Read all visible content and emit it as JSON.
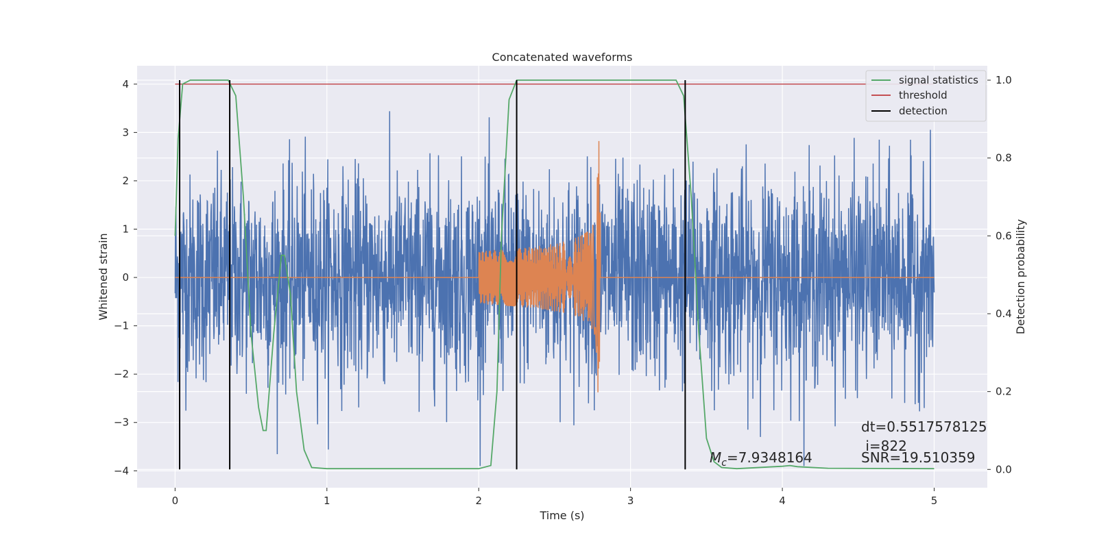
{
  "chart_data": {
    "type": "line",
    "title": "Concatenated waveforms",
    "xlabel": "Time (s)",
    "ylabel": "Whitened strain",
    "y2label": "Detection probability",
    "xlim": [
      -0.25,
      5.35
    ],
    "ylim": [
      -4.35,
      4.38
    ],
    "y2lim": [
      -0.047,
      1.037
    ],
    "xticks": [
      0,
      1,
      2,
      3,
      4,
      5
    ],
    "yticks": [
      -4,
      -3,
      -2,
      -1,
      0,
      1,
      2,
      3,
      4
    ],
    "y2ticks": [
      0.0,
      0.2,
      0.4,
      0.6,
      0.8,
      1.0
    ],
    "xtick_labels": [
      "0",
      "1",
      "2",
      "3",
      "4",
      "5"
    ],
    "ytick_labels": [
      "−4",
      "−3",
      "−2",
      "−1",
      "0",
      "1",
      "2",
      "3",
      "4"
    ],
    "y2tick_labels": [
      "0.0",
      "0.2",
      "0.4",
      "0.6",
      "0.8",
      "1.0"
    ],
    "grid": true,
    "legend_position": "top-right",
    "colors": {
      "strain": "#4c72b0",
      "waveform": "#dd8452",
      "signal": "#55a868",
      "threshold": "#c44e52",
      "detection": "#000000",
      "background": "#eaeaf2",
      "grid": "#ffffff"
    },
    "series": [
      {
        "key": "strain",
        "description_axis": "left",
        "x_range": [
          0,
          5
        ],
        "approx_amplitude_range": [
          -3.9,
          3.8
        ]
      },
      {
        "key": "waveform",
        "description_axis": "left",
        "x_range": [
          2.0,
          2.8
        ],
        "approx_peak_amplitude": 3.0
      },
      {
        "name": "signal statistics",
        "axis": "right",
        "x": [
          0.0,
          0.02,
          0.05,
          0.1,
          0.2,
          0.35,
          0.4,
          0.45,
          0.5,
          0.55,
          0.58,
          0.6,
          0.65,
          0.7,
          0.72,
          0.76,
          0.8,
          0.85,
          0.9,
          1.0,
          2.0,
          2.08,
          2.12,
          2.15,
          2.2,
          2.25,
          2.3,
          3.3,
          3.35,
          3.4,
          3.45,
          3.5,
          3.55,
          3.6,
          3.7,
          4.0,
          4.05,
          4.1,
          4.3,
          5.0
        ],
        "values": [
          0.6,
          0.85,
          0.99,
          1.0,
          1.0,
          1.0,
          0.96,
          0.7,
          0.35,
          0.16,
          0.1,
          0.1,
          0.35,
          0.55,
          0.55,
          0.45,
          0.2,
          0.05,
          0.005,
          0.002,
          0.002,
          0.01,
          0.2,
          0.6,
          0.95,
          1.0,
          1.0,
          1.0,
          0.96,
          0.7,
          0.35,
          0.08,
          0.02,
          0.005,
          0.002,
          0.008,
          0.01,
          0.007,
          0.003,
          0.002
        ]
      },
      {
        "name": "threshold",
        "axis": "right",
        "x": [
          0.0,
          5.0
        ],
        "values": [
          0.99,
          0.99
        ]
      },
      {
        "name": "detection",
        "axis": "right",
        "x": [
          0.03,
          0.36,
          2.25,
          3.36
        ],
        "segment_range": [
          0.0,
          1.0
        ]
      }
    ],
    "legend_entries": [
      "signal statistics",
      "threshold",
      "detection"
    ],
    "annotations": {
      "dt": "dt=0.5517578125",
      "i": " i=822",
      "mc_symbol": "M",
      "mc_subscript": "c",
      "mc_value": "=7.9348164",
      "snr": "SNR=19.510359"
    }
  }
}
